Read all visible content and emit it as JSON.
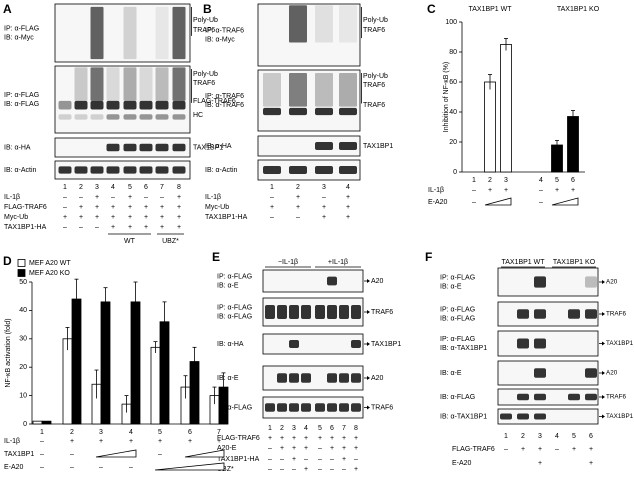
{
  "panels": [
    {
      "label": "A",
      "rows": [
        {
          "left": [
            "IP: α-FLAG",
            "IB: α-Myc"
          ],
          "right": [
            "Poly-Ub",
            "TRAF6"
          ]
        },
        {
          "left": [
            "IP: α-FLAG",
            "IB: α-FLAG"
          ],
          "right": [
            "Poly-Ub",
            "TRAF6",
            "FLAG-TRAF6",
            "HC"
          ]
        },
        {
          "left": [
            "IB: α-HA"
          ],
          "right": [
            "TAX1BP1"
          ]
        },
        {
          "left": [
            "IB: α-Actin"
          ]
        }
      ],
      "lanes": [
        "1",
        "2",
        "3",
        "4",
        "5",
        "6",
        "7",
        "8"
      ],
      "conditions": [
        {
          "label": "IL-1β",
          "values": [
            "–",
            "–",
            "+",
            "–",
            "+",
            "–",
            "–",
            "+"
          ]
        },
        {
          "label": "FLAG-TRAF6",
          "values": [
            "–",
            "+",
            "+",
            "+",
            "+",
            "+",
            "+",
            "+"
          ]
        },
        {
          "label": "Myc-Ub",
          "values": [
            "+",
            "+",
            "+",
            "+",
            "+",
            "+",
            "+",
            "+"
          ]
        },
        {
          "label": "TAX1BP1-HA",
          "values": [
            "–",
            "–",
            "–",
            "+",
            "+",
            "+",
            "+",
            "+"
          ]
        }
      ],
      "groups": [
        "WT",
        "UBZ*"
      ]
    },
    {
      "label": "B",
      "rows": [
        {
          "left": [
            "IP: α-TRAF6",
            "IB: α-Myc"
          ],
          "right": [
            "Poly-Ub",
            "TRAF6"
          ]
        },
        {
          "left": [
            "IP: α-TRAF6",
            "IB: α-TRAF6"
          ],
          "right": [
            "Poly-Ub",
            "TRAF6",
            "TRAF6"
          ]
        },
        {
          "left": [
            "IB: α-HA"
          ],
          "right": [
            "TAX1BP1"
          ]
        },
        {
          "left": [
            "IB: α-Actin"
          ]
        }
      ],
      "lanes": [
        "1",
        "2",
        "3",
        "4"
      ],
      "conditions": [
        {
          "label": "IL-1β",
          "values": [
            "–",
            "+",
            "–",
            "+"
          ]
        },
        {
          "label": "Myc-Ub",
          "values": [
            "+",
            "+",
            "+",
            "+"
          ]
        },
        {
          "label": "TAX1BP1-HA",
          "values": [
            "–",
            "–",
            "+",
            "+"
          ]
        }
      ]
    },
    {
      "label": "E",
      "headers": [
        "−IL-1β",
        "+IL-1β"
      ],
      "rows": [
        {
          "left": [
            "IP: α-FLAG",
            "IB: α-E"
          ],
          "right": [
            "A20"
          ]
        },
        {
          "left": [
            "IP: α-FLAG",
            "IB: α-FLAG"
          ],
          "right": [
            "TRAF6"
          ]
        },
        {
          "left": [
            "IB: α-HA"
          ],
          "right": [
            "TAX1BP1"
          ]
        },
        {
          "left": [
            "IB: α-E"
          ],
          "right": [
            "A20"
          ]
        },
        {
          "left": [
            "IB: α-FLAG"
          ],
          "right": [
            "TRAF6"
          ]
        }
      ],
      "lanes": [
        "1",
        "2",
        "3",
        "4",
        "5",
        "6",
        "7",
        "8"
      ],
      "conditions": [
        {
          "label": "FLAG-TRAF6",
          "values": [
            "+",
            "+",
            "+",
            "+",
            "+",
            "+",
            "+",
            "+"
          ]
        },
        {
          "label": "A20-E",
          "values": [
            "–",
            "+",
            "+",
            "+",
            "–",
            "+",
            "+",
            "+"
          ]
        },
        {
          "label": "TAX1BP1-HA",
          "values": [
            "–",
            "–",
            "+",
            "–",
            "–",
            "–",
            "+",
            "–"
          ]
        },
        {
          "label": "UBZ*",
          "values": [
            "–",
            "–",
            "–",
            "+",
            "–",
            "–",
            "–",
            "+"
          ]
        }
      ]
    },
    {
      "label": "F",
      "headers": [
        "TAX1BP1 WT",
        "TAX1BP1 KO"
      ],
      "rows": [
        {
          "left": [
            "IP: α-FLAG",
            "IB: α-E"
          ],
          "right": [
            "A20"
          ]
        },
        {
          "left": [
            "IP: α-FLAG",
            "IB: α-FLAG"
          ],
          "right": [
            "TRAF6"
          ]
        },
        {
          "left": [
            "IP: α-FLAG",
            "IB: α-TAX1BP1"
          ],
          "right": [
            "TAX1BP1"
          ]
        },
        {
          "left": [
            "IB: α-E"
          ],
          "right": [
            "A20"
          ]
        },
        {
          "left": [
            "IB: α-FLAG"
          ],
          "right": [
            "TRAF6"
          ]
        },
        {
          "left": [
            "IB: α-TAX1BP1"
          ],
          "right": [
            "TAX1BP1"
          ]
        }
      ],
      "lanes": [
        "1",
        "2",
        "3",
        "4",
        "5",
        "6"
      ],
      "conditions": [
        {
          "label": "FLAG-TRAF6",
          "values": [
            "–",
            "+",
            "+",
            "–",
            "+",
            "+"
          ]
        },
        {
          "label": "E-A20",
          "values": [
            null,
            null,
            "+",
            null,
            null,
            "+"
          ]
        }
      ]
    }
  ],
  "chart_data": [
    {
      "type": "bar",
      "panel": "C",
      "ylabel": "Inhibition of NF-κB (%)",
      "group_labels": [
        "TAX1BP1 WT",
        "TAX1BP1 KO"
      ],
      "categories": [
        "1",
        "2",
        "3",
        "4",
        "5",
        "6"
      ],
      "values": [
        0,
        60,
        85,
        0,
        18,
        37
      ],
      "errors": [
        null,
        5,
        4,
        null,
        3,
        4
      ],
      "colors": [
        "#ffffff",
        "#ffffff",
        "#ffffff",
        "#000000",
        "#000000",
        "#000000"
      ],
      "ylim": [
        0,
        100
      ],
      "yticks": [
        0,
        20,
        40,
        60,
        80,
        100
      ],
      "conditions": [
        {
          "label": "IL-1β",
          "values": [
            "–",
            "+",
            "+",
            "–",
            "+",
            "+"
          ]
        },
        {
          "label": "E-A20",
          "values": [
            "–",
            null,
            null,
            "–",
            null,
            null
          ]
        }
      ]
    },
    {
      "type": "bar",
      "panel": "D",
      "ylabel": "NF-κB activation (fold)",
      "categories": [
        "1",
        "2",
        "3",
        "4",
        "5",
        "6",
        "7"
      ],
      "series": [
        {
          "name": "MEF A20 WT",
          "color": "#ffffff",
          "values": [
            1,
            30,
            14,
            7,
            27,
            13,
            10
          ],
          "errors": [
            null,
            4,
            5,
            3,
            2,
            4,
            3
          ]
        },
        {
          "name": "MEF A20 KO",
          "color": "#000000",
          "values": [
            1,
            44,
            43,
            43,
            36,
            22,
            13
          ],
          "errors": [
            null,
            7,
            5,
            7,
            7,
            5,
            5
          ]
        }
      ],
      "ylim": [
        0,
        50
      ],
      "yticks": [
        0,
        10,
        20,
        30,
        40,
        50
      ],
      "conditions": [
        {
          "label": "IL-1β",
          "values": [
            "–",
            "+",
            "+",
            "+",
            "+",
            "+",
            "+"
          ]
        },
        {
          "label": "TAX1BP1",
          "values": [
            "–",
            "–",
            null,
            null,
            "–",
            null,
            null
          ]
        },
        {
          "label": "E-A20",
          "values": [
            "–",
            "–",
            "–",
            "–",
            null,
            null,
            null
          ]
        }
      ]
    }
  ]
}
